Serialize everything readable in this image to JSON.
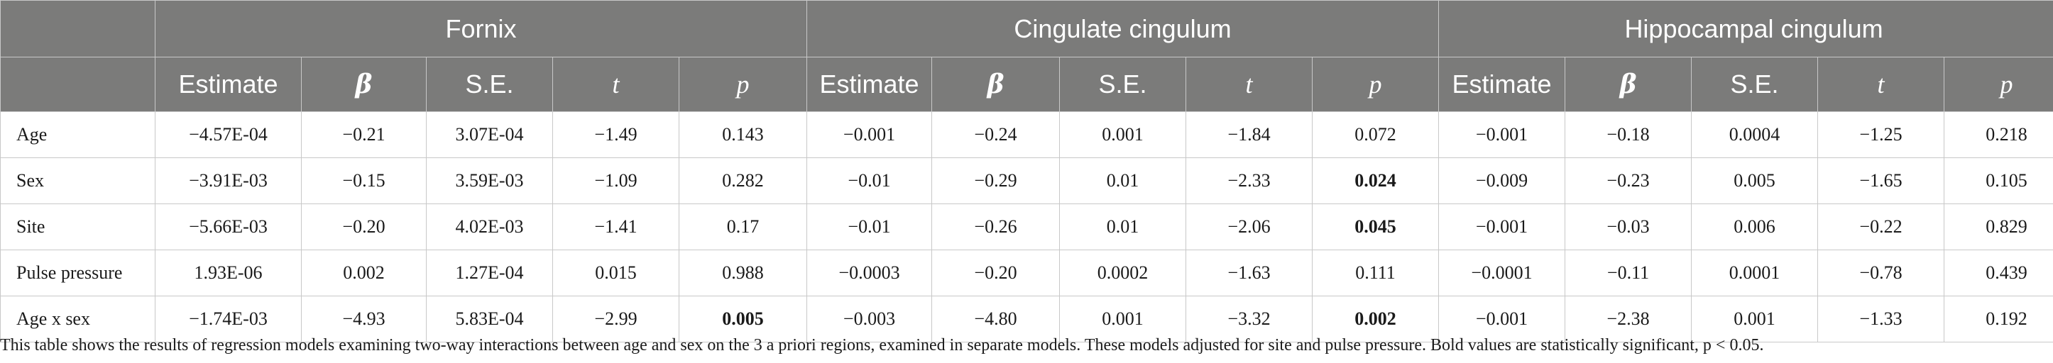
{
  "table": {
    "groups": [
      {
        "label": "Fornix"
      },
      {
        "label": "Cingulate cingulum"
      },
      {
        "label": "Hippocampal cingulum"
      }
    ],
    "columns": [
      "Estimate",
      "β",
      "S.E.",
      "t",
      "p"
    ],
    "rows": [
      {
        "label": "Age",
        "cells": [
          {
            "v": "−4.57E-04",
            "bold": false
          },
          {
            "v": "−0.21",
            "bold": false
          },
          {
            "v": "3.07E-04",
            "bold": false
          },
          {
            "v": "−1.49",
            "bold": false
          },
          {
            "v": "0.143",
            "bold": false
          },
          {
            "v": "−0.001",
            "bold": false
          },
          {
            "v": "−0.24",
            "bold": false
          },
          {
            "v": "0.001",
            "bold": false
          },
          {
            "v": "−1.84",
            "bold": false
          },
          {
            "v": "0.072",
            "bold": false
          },
          {
            "v": "−0.001",
            "bold": false
          },
          {
            "v": "−0.18",
            "bold": false
          },
          {
            "v": "0.0004",
            "bold": false
          },
          {
            "v": "−1.25",
            "bold": false
          },
          {
            "v": "0.218",
            "bold": false
          }
        ]
      },
      {
        "label": "Sex",
        "cells": [
          {
            "v": "−3.91E-03",
            "bold": false
          },
          {
            "v": "−0.15",
            "bold": false
          },
          {
            "v": "3.59E-03",
            "bold": false
          },
          {
            "v": "−1.09",
            "bold": false
          },
          {
            "v": "0.282",
            "bold": false
          },
          {
            "v": "−0.01",
            "bold": false
          },
          {
            "v": "−0.29",
            "bold": false
          },
          {
            "v": "0.01",
            "bold": false
          },
          {
            "v": "−2.33",
            "bold": false
          },
          {
            "v": "0.024",
            "bold": true
          },
          {
            "v": "−0.009",
            "bold": false
          },
          {
            "v": "−0.23",
            "bold": false
          },
          {
            "v": "0.005",
            "bold": false
          },
          {
            "v": "−1.65",
            "bold": false
          },
          {
            "v": "0.105",
            "bold": false
          }
        ]
      },
      {
        "label": "Site",
        "cells": [
          {
            "v": "−5.66E-03",
            "bold": false
          },
          {
            "v": "−0.20",
            "bold": false
          },
          {
            "v": "4.02E-03",
            "bold": false
          },
          {
            "v": "−1.41",
            "bold": false
          },
          {
            "v": "0.17",
            "bold": false
          },
          {
            "v": "−0.01",
            "bold": false
          },
          {
            "v": "−0.26",
            "bold": false
          },
          {
            "v": "0.01",
            "bold": false
          },
          {
            "v": "−2.06",
            "bold": false
          },
          {
            "v": "0.045",
            "bold": true
          },
          {
            "v": "−0.001",
            "bold": false
          },
          {
            "v": "−0.03",
            "bold": false
          },
          {
            "v": "0.006",
            "bold": false
          },
          {
            "v": "−0.22",
            "bold": false
          },
          {
            "v": "0.829",
            "bold": false
          }
        ]
      },
      {
        "label": "Pulse pressure",
        "cells": [
          {
            "v": "1.93E-06",
            "bold": false
          },
          {
            "v": "0.002",
            "bold": false
          },
          {
            "v": "1.27E-04",
            "bold": false
          },
          {
            "v": "0.015",
            "bold": false
          },
          {
            "v": "0.988",
            "bold": false
          },
          {
            "v": "−0.0003",
            "bold": false
          },
          {
            "v": "−0.20",
            "bold": false
          },
          {
            "v": "0.0002",
            "bold": false
          },
          {
            "v": "−1.63",
            "bold": false
          },
          {
            "v": "0.111",
            "bold": false
          },
          {
            "v": "−0.0001",
            "bold": false
          },
          {
            "v": "−0.11",
            "bold": false
          },
          {
            "v": "0.0001",
            "bold": false
          },
          {
            "v": "−0.78",
            "bold": false
          },
          {
            "v": "0.439",
            "bold": false
          }
        ]
      },
      {
        "label": "Age x sex",
        "cells": [
          {
            "v": "−1.74E-03",
            "bold": false
          },
          {
            "v": "−4.93",
            "bold": false
          },
          {
            "v": "5.83E-04",
            "bold": false
          },
          {
            "v": "−2.99",
            "bold": false
          },
          {
            "v": "0.005",
            "bold": true
          },
          {
            "v": "−0.003",
            "bold": false
          },
          {
            "v": "−4.80",
            "bold": false
          },
          {
            "v": "0.001",
            "bold": false
          },
          {
            "v": "−3.32",
            "bold": false
          },
          {
            "v": "0.002",
            "bold": true
          },
          {
            "v": "−0.001",
            "bold": false
          },
          {
            "v": "−2.38",
            "bold": false
          },
          {
            "v": "0.001",
            "bold": false
          },
          {
            "v": "−1.33",
            "bold": false
          },
          {
            "v": "0.192",
            "bold": false
          }
        ]
      }
    ]
  },
  "caption": "This table shows the results of regression models examining two-way interactions between age and sex on the 3 a priori regions, examined in separate models. These models adjusted for site and pulse pressure. Bold values are statistically significant, p < 0.05.",
  "colors": {
    "header_background": "#7b7b7a",
    "header_text": "#ffffff",
    "grid_lines": "#c8c8c8"
  }
}
